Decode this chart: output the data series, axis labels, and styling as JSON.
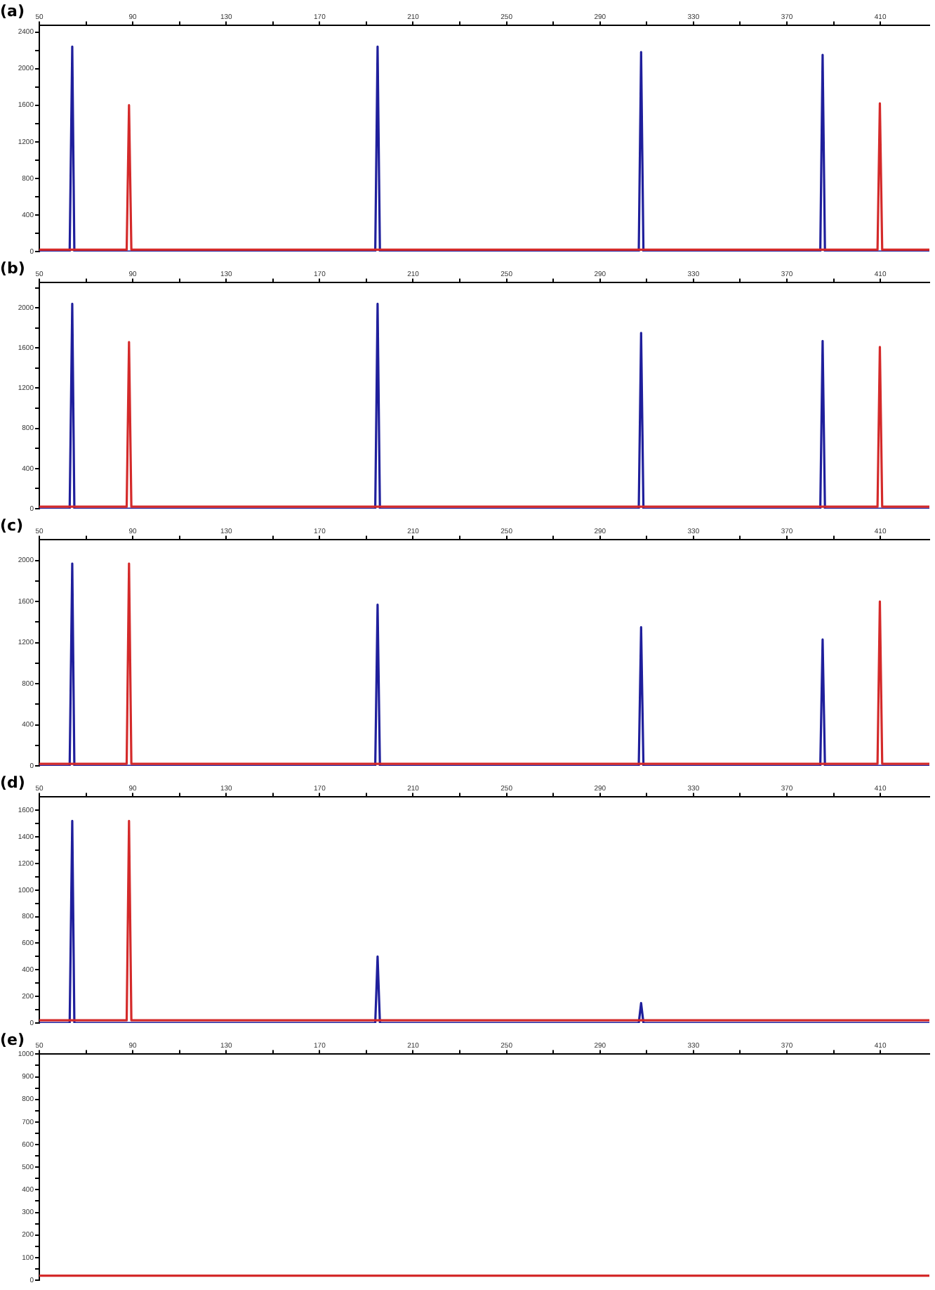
{
  "chart_data": [
    {
      "type": "line",
      "title": "(a)",
      "xlim": [
        50,
        431
      ],
      "ylim": [
        0,
        2470
      ],
      "marker": "none",
      "legend": false,
      "grid": false,
      "xticks": [
        50,
        {
          "value": 70,
          "label": null
        },
        90,
        {
          "value": 110,
          "label": null
        },
        130,
        {
          "value": 150,
          "label": null
        },
        170,
        {
          "value": 190,
          "label": null
        },
        210,
        {
          "value": 230,
          "label": null
        },
        250,
        {
          "value": 270,
          "label": null
        },
        290,
        {
          "value": 310,
          "label": null
        },
        330,
        {
          "value": 350,
          "label": null
        },
        370,
        {
          "value": 390,
          "label": null
        },
        410
      ],
      "yticks": [
        0,
        {
          "value": 200,
          "label": null
        },
        400,
        {
          "value": 600,
          "label": null
        },
        800,
        {
          "value": 1000,
          "label": null
        },
        1200,
        {
          "value": 1400,
          "label": null
        },
        1600,
        {
          "value": 1800,
          "label": null
        },
        2000,
        {
          "value": 2200,
          "label": null
        },
        2400
      ],
      "series": [
        {
          "color": "#1f1f9c",
          "x": [
            50,
            63,
            64.1,
            65,
            193.8,
            194.8,
            195.8,
            306.6,
            307.6,
            308.6,
            384.3,
            385.3,
            386.3,
            431
          ],
          "values": [
            0,
            0,
            2240,
            0,
            0,
            2240,
            0,
            0,
            2180,
            0,
            0,
            2150,
            0,
            0
          ]
        },
        {
          "color": "#d42a2a",
          "x": [
            50,
            87.4,
            88.4,
            89.4,
            408.8,
            409.8,
            410.8,
            431
          ],
          "values": [
            20,
            20,
            1600,
            20,
            20,
            1620,
            20,
            20
          ]
        }
      ]
    },
    {
      "type": "line",
      "title": "(b)",
      "xlim": [
        50,
        431
      ],
      "ylim": [
        0,
        2250
      ],
      "marker": "none",
      "legend": false,
      "grid": false,
      "xticks": [
        50,
        {
          "value": 70,
          "label": null
        },
        90,
        {
          "value": 110,
          "label": null
        },
        130,
        {
          "value": 150,
          "label": null
        },
        170,
        {
          "value": 190,
          "label": null
        },
        210,
        {
          "value": 230,
          "label": null
        },
        250,
        {
          "value": 270,
          "label": null
        },
        290,
        {
          "value": 310,
          "label": null
        },
        330,
        {
          "value": 350,
          "label": null
        },
        370,
        {
          "value": 390,
          "label": null
        },
        410
      ],
      "yticks": [
        0,
        {
          "value": 200,
          "label": null
        },
        400,
        {
          "value": 600,
          "label": null
        },
        800,
        {
          "value": 1000,
          "label": null
        },
        1200,
        {
          "value": 1400,
          "label": null
        },
        1600,
        {
          "value": 1800,
          "label": null
        },
        2000,
        {
          "value": 2200,
          "label": null
        }
      ],
      "series": [
        {
          "color": "#1f1f9c",
          "x": [
            50,
            63,
            64.1,
            65,
            193.8,
            194.8,
            195.8,
            306.6,
            307.6,
            308.6,
            384.3,
            385.3,
            386.3,
            431
          ],
          "values": [
            0,
            0,
            2040,
            0,
            0,
            2040,
            0,
            0,
            1750,
            0,
            0,
            1670,
            0,
            0
          ]
        },
        {
          "color": "#d42a2a",
          "x": [
            50,
            87.4,
            88.4,
            89.4,
            408.8,
            409.8,
            410.8,
            431
          ],
          "values": [
            20,
            20,
            1660,
            20,
            20,
            1610,
            20,
            20
          ]
        }
      ]
    },
    {
      "type": "line",
      "title": "(c)",
      "xlim": [
        50,
        431
      ],
      "ylim": [
        0,
        2200
      ],
      "marker": "none",
      "legend": false,
      "grid": false,
      "xticks": [
        50,
        {
          "value": 70,
          "label": null
        },
        90,
        {
          "value": 110,
          "label": null
        },
        130,
        {
          "value": 150,
          "label": null
        },
        170,
        {
          "value": 190,
          "label": null
        },
        210,
        {
          "value": 230,
          "label": null
        },
        250,
        {
          "value": 270,
          "label": null
        },
        290,
        {
          "value": 310,
          "label": null
        },
        330,
        {
          "value": 350,
          "label": null
        },
        370,
        {
          "value": 390,
          "label": null
        },
        410
      ],
      "yticks": [
        0,
        {
          "value": 200,
          "label": null
        },
        400,
        {
          "value": 600,
          "label": null
        },
        800,
        {
          "value": 1000,
          "label": null
        },
        1200,
        {
          "value": 1400,
          "label": null
        },
        1600,
        {
          "value": 1800,
          "label": null
        },
        2000
      ],
      "series": [
        {
          "color": "#1f1f9c",
          "x": [
            50,
            63,
            64.1,
            65,
            193.8,
            194.8,
            195.8,
            306.6,
            307.6,
            308.6,
            384.3,
            385.3,
            386.3,
            431
          ],
          "values": [
            0,
            0,
            1970,
            0,
            0,
            1570,
            0,
            0,
            1350,
            0,
            0,
            1230,
            0,
            0
          ]
        },
        {
          "color": "#d42a2a",
          "x": [
            50,
            87.4,
            88.4,
            89.4,
            408.8,
            409.8,
            410.8,
            431
          ],
          "values": [
            20,
            20,
            1970,
            20,
            20,
            1600,
            20,
            20
          ]
        }
      ]
    },
    {
      "type": "line",
      "title": "(d)",
      "xlim": [
        50,
        431
      ],
      "ylim": [
        0,
        1700
      ],
      "marker": "none",
      "legend": false,
      "grid": false,
      "xticks": [
        50,
        {
          "value": 70,
          "label": null
        },
        90,
        {
          "value": 110,
          "label": null
        },
        130,
        {
          "value": 150,
          "label": null
        },
        170,
        {
          "value": 190,
          "label": null
        },
        210,
        {
          "value": 230,
          "label": null
        },
        250,
        {
          "value": 270,
          "label": null
        },
        290,
        {
          "value": 310,
          "label": null
        },
        330,
        {
          "value": 350,
          "label": null
        },
        370,
        {
          "value": 390,
          "label": null
        },
        410
      ],
      "yticks": [
        0,
        {
          "value": 100,
          "label": null
        },
        200,
        {
          "value": 300,
          "label": null
        },
        400,
        {
          "value": 500,
          "label": null
        },
        600,
        {
          "value": 700,
          "label": null
        },
        800,
        {
          "value": 900,
          "label": null
        },
        1000,
        {
          "value": 1100,
          "label": null
        },
        1200,
        {
          "value": 1300,
          "label": null
        },
        1400,
        {
          "value": 1500,
          "label": null
        },
        1600
      ],
      "series": [
        {
          "color": "#1f1f9c",
          "x": [
            50,
            63,
            64.1,
            65,
            193.8,
            194.8,
            195.8,
            306.6,
            307.6,
            308.6,
            431
          ],
          "values": [
            0,
            0,
            1520,
            0,
            0,
            500,
            0,
            0,
            150,
            0,
            0
          ]
        },
        {
          "color": "#d42a2a",
          "x": [
            50,
            87.4,
            88.4,
            89.4,
            431
          ],
          "values": [
            20,
            20,
            1520,
            20,
            20
          ]
        }
      ]
    },
    {
      "type": "line",
      "title": "(e)",
      "xlim": [
        50,
        431
      ],
      "ylim": [
        0,
        1000
      ],
      "marker": "none",
      "legend": false,
      "grid": false,
      "xticks": [
        50,
        {
          "value": 70,
          "label": null
        },
        90,
        {
          "value": 110,
          "label": null
        },
        130,
        {
          "value": 150,
          "label": null
        },
        170,
        {
          "value": 190,
          "label": null
        },
        210,
        {
          "value": 230,
          "label": null
        },
        250,
        {
          "value": 270,
          "label": null
        },
        290,
        {
          "value": 310,
          "label": null
        },
        330,
        {
          "value": 350,
          "label": null
        },
        370,
        {
          "value": 390,
          "label": null
        },
        410
      ],
      "yticks": [
        0,
        {
          "value": 50,
          "label": null
        },
        100,
        {
          "value": 150,
          "label": null
        },
        200,
        {
          "value": 250,
          "label": null
        },
        300,
        {
          "value": 350,
          "label": null
        },
        400,
        {
          "value": 450,
          "label": null
        },
        500,
        {
          "value": 550,
          "label": null
        },
        600,
        {
          "value": 650,
          "label": null
        },
        700,
        {
          "value": 750,
          "label": null
        },
        800,
        {
          "value": 850,
          "label": null
        },
        900,
        {
          "value": 950,
          "label": null
        },
        1000
      ],
      "series": [
        {
          "color": "#d42a2a",
          "x": [
            50,
            431
          ],
          "values": [
            20,
            20
          ]
        }
      ]
    }
  ]
}
